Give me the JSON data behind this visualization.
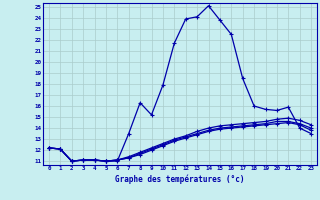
{
  "title": "Graphe des températures (°c)",
  "bg_color": "#c8eef0",
  "line_color": "#0000aa",
  "grid_color": "#aacccc",
  "x_labels": [
    "0",
    "1",
    "2",
    "3",
    "4",
    "5",
    "6",
    "7",
    "8",
    "9",
    "10",
    "11",
    "12",
    "13",
    "14",
    "15",
    "16",
    "17",
    "18",
    "19",
    "20",
    "21",
    "22",
    "23"
  ],
  "y_ticks": [
    11,
    12,
    13,
    14,
    15,
    16,
    17,
    18,
    19,
    20,
    21,
    22,
    23,
    24,
    25
  ],
  "y_min": 11,
  "y_max": 25,
  "curve_main": [
    12.2,
    12.1,
    11.0,
    11.1,
    11.1,
    11.0,
    11.0,
    13.5,
    16.3,
    15.2,
    17.9,
    21.7,
    23.9,
    24.1,
    25.1,
    23.8,
    22.5,
    18.5,
    16.0,
    15.7,
    15.6,
    15.9,
    14.0,
    13.5
  ],
  "curve_avg1": [
    12.2,
    12.1,
    11.0,
    11.1,
    11.1,
    11.0,
    11.1,
    11.4,
    11.8,
    12.2,
    12.6,
    13.0,
    13.3,
    13.7,
    14.0,
    14.2,
    14.3,
    14.4,
    14.5,
    14.6,
    14.8,
    14.9,
    14.7,
    14.3
  ],
  "curve_avg2": [
    12.2,
    12.1,
    11.0,
    11.1,
    11.1,
    11.0,
    11.1,
    11.3,
    11.7,
    12.1,
    12.5,
    12.9,
    13.2,
    13.5,
    13.8,
    14.0,
    14.1,
    14.2,
    14.3,
    14.4,
    14.6,
    14.6,
    14.4,
    14.0
  ],
  "curve_avg3": [
    12.2,
    12.1,
    11.0,
    11.1,
    11.1,
    11.0,
    11.1,
    11.3,
    11.6,
    12.0,
    12.4,
    12.8,
    13.1,
    13.4,
    13.7,
    13.9,
    14.0,
    14.1,
    14.2,
    14.3,
    14.4,
    14.5,
    14.3,
    13.8
  ]
}
